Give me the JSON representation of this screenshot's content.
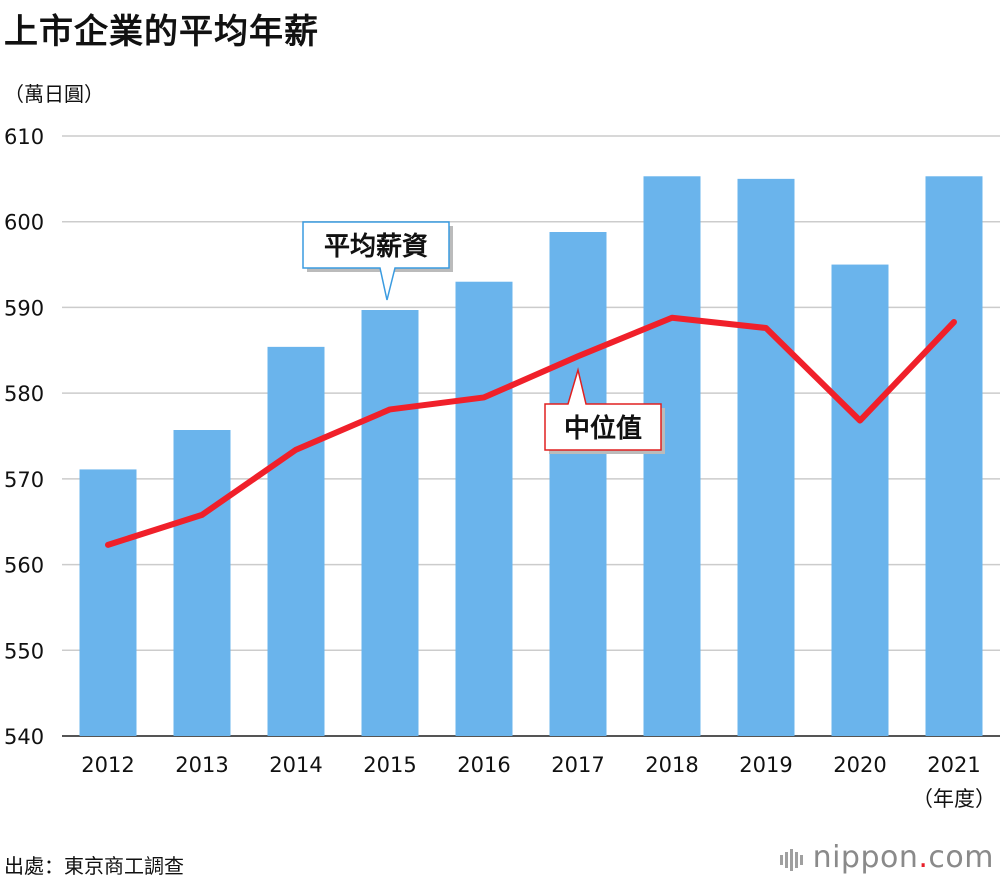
{
  "title": "上市企業的平均年薪",
  "unit_label": "（萬日圓）",
  "source": "出處：東京商工調查",
  "brand": {
    "name": "nippon",
    "suffix": ".com"
  },
  "colors": {
    "bar": "#6ab4ec",
    "line": "#f0202a",
    "grid": "#cccccc"
  },
  "chart_data": {
    "type": "bar",
    "categories": [
      "2012",
      "2013",
      "2014",
      "2015",
      "2016",
      "2017",
      "2018",
      "2019",
      "2020",
      "2021"
    ],
    "x_unit_label": "（年度）",
    "ylim": [
      540,
      610
    ],
    "yticks": [
      540,
      550,
      560,
      570,
      580,
      590,
      600,
      610
    ],
    "grid": true,
    "series": [
      {
        "name": "平均薪資",
        "type": "bar",
        "values": [
          571.1,
          575.7,
          585.4,
          589.7,
          593.0,
          598.8,
          605.3,
          605.0,
          595.0,
          605.3
        ]
      },
      {
        "name": "中位值",
        "type": "line",
        "values": [
          562.3,
          565.8,
          573.4,
          578.1,
          579.5,
          584.3,
          588.8,
          587.6,
          576.8,
          588.3
        ]
      }
    ]
  }
}
